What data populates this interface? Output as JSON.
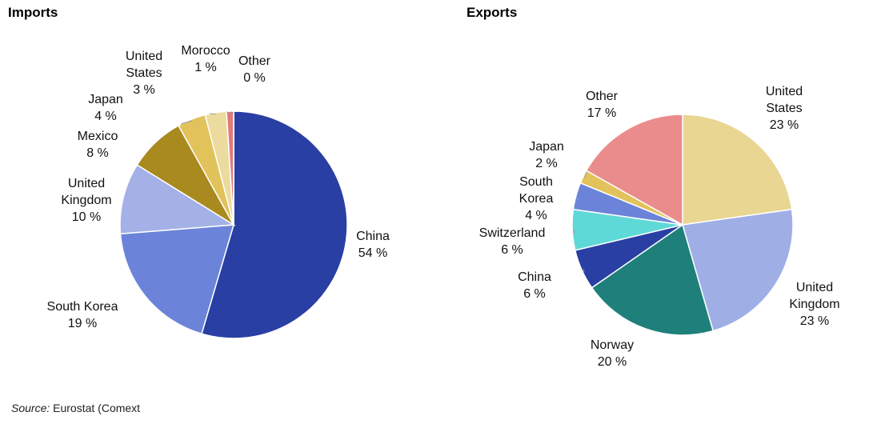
{
  "chart_data": [
    {
      "type": "pie",
      "title": "Imports",
      "categories": [
        "China",
        "South Korea",
        "United Kingdom",
        "Mexico",
        "Japan",
        "United States",
        "Morocco",
        "Other"
      ],
      "values": [
        54,
        19,
        10,
        8,
        4,
        3,
        1,
        0
      ],
      "value_labels": [
        "54 %",
        "19 %",
        "10 %",
        "8 %",
        "4 %",
        "3 %",
        "1 %",
        "0 %"
      ],
      "colors": [
        "#2a3fa3",
        "#6b84d9",
        "#a3b1e6",
        "#a88a1f",
        "#e2c25a",
        "#ecdb9f",
        "#e07a7a",
        "#c8c8c8"
      ]
    },
    {
      "type": "pie",
      "title": "Exports",
      "categories": [
        "United States",
        "United Kingdom",
        "Norway",
        "China",
        "Switzerland",
        "South Korea",
        "Japan",
        "Other"
      ],
      "values": [
        23,
        23,
        20,
        6,
        6,
        4,
        2,
        17
      ],
      "value_labels": [
        "23 %",
        "23 %",
        "20 %",
        "6 %",
        "6 %",
        "4 %",
        "2 %",
        "17 %"
      ],
      "colors": [
        "#e9d692",
        "#a0aee6",
        "#1f807b",
        "#2a3fa3",
        "#5fd8d8",
        "#6b84d9",
        "#e2c25a",
        "#eb8c8c"
      ]
    }
  ],
  "source_label": "Source:",
  "source": "Eurostat (Comext"
}
